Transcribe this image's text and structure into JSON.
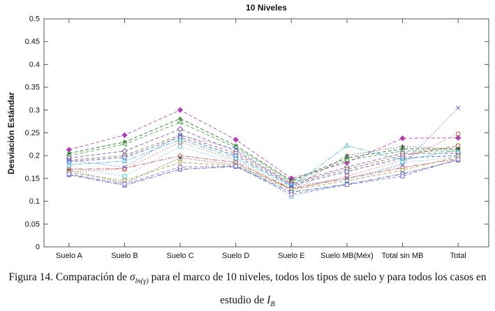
{
  "figure": {
    "title": "10 Niveles",
    "ylabel": "Desviación Estándar"
  },
  "caption": {
    "part1": "Figura 14. Comparación de ",
    "sigma": "σ",
    "sigma_sub": "ln(γ)",
    "part2": " para el marco de 10 niveles,  todos los tipos de suelo y para todos los casos en estudio de ",
    "i_symbol": "I",
    "i_sub": "B"
  },
  "chart_data": {
    "type": "line",
    "title": "10 Niveles",
    "xlabel": "",
    "ylabel": "Desviación Estándar",
    "ylim": [
      0,
      0.5
    ],
    "ytick_labels": [
      "0",
      "0.05",
      "0.1",
      "0.15",
      "0.2",
      "0.25",
      "0.3",
      "0.35",
      "0.4",
      "0.45",
      "0.5"
    ],
    "grid": false,
    "legend_position": "none",
    "categories": [
      "Suelo A",
      "Suelo B",
      "Suelo C",
      "Suelo D",
      "Suelo E",
      "Suelo MB(Méx)",
      "Total sin MB",
      "Total"
    ],
    "axis_color": "#555555",
    "series": [
      {
        "color": "#b13fb1",
        "dash": "5,3",
        "marker": "diamond",
        "filled": true,
        "values": [
          0.213,
          0.245,
          0.3,
          0.235,
          0.15,
          0.185,
          0.238,
          0.239
        ]
      },
      {
        "color": "#226622",
        "dash": "5,3",
        "marker": "star",
        "filled": false,
        "values": [
          0.205,
          0.23,
          0.281,
          0.222,
          0.145,
          0.195,
          0.215,
          0.214
        ]
      },
      {
        "color": "#3fa03f",
        "dash": "5,3",
        "marker": "triangle-left",
        "filled": false,
        "values": [
          0.2,
          0.225,
          0.273,
          0.218,
          0.143,
          0.19,
          0.21,
          0.21
        ]
      },
      {
        "color": "#7a4fb5",
        "dash": "5,3",
        "marker": "diamond",
        "filled": false,
        "values": [
          0.195,
          0.21,
          0.258,
          0.21,
          0.14,
          0.175,
          0.205,
          0.205
        ]
      },
      {
        "color": "#996633",
        "dash": "5,3",
        "marker": "square",
        "filled": false,
        "values": [
          0.19,
          0.2,
          0.245,
          0.205,
          0.138,
          0.17,
          0.2,
          0.222
        ]
      },
      {
        "color": "#cc6655",
        "dash": "1.5,2.5",
        "marker": "square",
        "filled": false,
        "values": [
          0.165,
          0.17,
          0.23,
          0.19,
          0.125,
          0.155,
          0.19,
          0.248
        ]
      },
      {
        "color": "#4455cc",
        "dash": "5,3",
        "marker": "square",
        "filled": false,
        "values": [
          0.187,
          0.196,
          0.24,
          0.2,
          0.135,
          0.165,
          0.195,
          0.2
        ]
      },
      {
        "color": "#44bbcc",
        "dash": "7,2,2,2",
        "marker": "triangle-up",
        "filled": false,
        "values": [
          0.18,
          0.188,
          0.235,
          0.195,
          0.132,
          0.222,
          0.19,
          0.212
        ]
      },
      {
        "color": "#55c8d8",
        "dash": "1.5,2.5",
        "marker": "square",
        "filled": false,
        "values": [
          0.175,
          0.155,
          0.22,
          0.185,
          0.11,
          0.14,
          0.185,
          0.197
        ]
      },
      {
        "color": "#cc4444",
        "dash": "7,2,2,2",
        "marker": "circle",
        "filled": false,
        "values": [
          0.17,
          0.172,
          0.2,
          0.185,
          0.128,
          0.15,
          0.174,
          0.193
        ]
      },
      {
        "color": "#444444",
        "dash": "1.5,2.5",
        "marker": "star",
        "filled": false,
        "values": [
          0.168,
          0.14,
          0.195,
          0.18,
          0.127,
          0.2,
          0.22,
          0.215
        ]
      },
      {
        "color": "#aaa044",
        "dash": "5,3",
        "marker": "triangle-down",
        "filled": false,
        "values": [
          0.163,
          0.145,
          0.185,
          0.178,
          0.125,
          0.145,
          0.168,
          0.198
        ]
      },
      {
        "color": "#3355bb",
        "dash": "7,2,2,2",
        "marker": "square",
        "filled": false,
        "values": [
          0.158,
          0.135,
          0.17,
          0.176,
          0.12,
          0.137,
          0.16,
          0.19
        ]
      },
      {
        "color": "#8866cc",
        "dash": "5,3",
        "marker": "square",
        "filled": false,
        "values": [
          0.16,
          0.138,
          0.175,
          0.177,
          0.115,
          0.136,
          0.155,
          0.192
        ]
      },
      {
        "color": "#5566dd",
        "dash": "1.5,2.5",
        "marker": "x",
        "filled": false,
        "values": [
          0.19,
          0.175,
          0.245,
          0.215,
          0.133,
          0.15,
          0.18,
          0.305
        ]
      }
    ]
  }
}
